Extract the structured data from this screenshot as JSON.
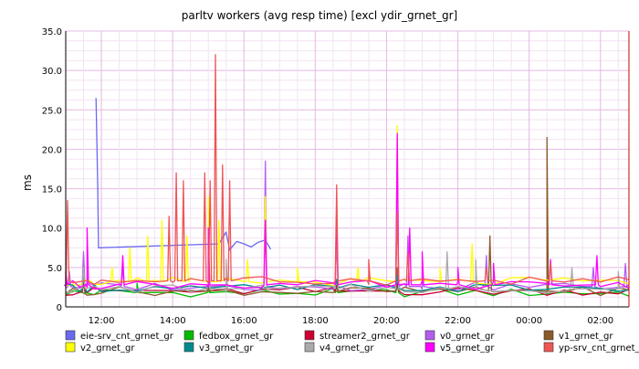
{
  "chart_data": {
    "type": "line",
    "title": "parltv workers (avg resp time) [excl ydir_grnet_gr]",
    "ylabel": "ms",
    "xlabel": "",
    "ylim": [
      0,
      35
    ],
    "xlim": [
      11.0,
      26.8
    ],
    "grid": true,
    "legend_position": "bottom",
    "y_ticks": [
      "0",
      "5.0",
      "10.0",
      "15.0",
      "20.0",
      "25.0",
      "30.0",
      "35.0"
    ],
    "x_ticks": [
      {
        "label": "12:00",
        "x": 12
      },
      {
        "label": "14:00",
        "x": 14
      },
      {
        "label": "16:00",
        "x": 16
      },
      {
        "label": "18:00",
        "x": 18
      },
      {
        "label": "20:00",
        "x": 20
      },
      {
        "label": "22:00",
        "x": 22
      },
      {
        "label": "00:00",
        "x": 24
      },
      {
        "label": "02:00",
        "x": 26
      }
    ],
    "base_x": [
      11.0,
      11.2,
      11.4,
      11.6,
      11.8,
      12.0,
      12.5,
      13.0,
      13.5,
      14.0,
      14.5,
      15.0,
      15.5,
      16.0,
      16.5,
      17.0,
      17.5,
      18.0,
      18.5,
      19.0,
      19.5,
      20.0,
      20.5,
      21.0,
      21.5,
      22.0,
      22.5,
      23.0,
      23.5,
      24.0,
      24.5,
      25.0,
      25.5,
      26.0,
      26.5,
      26.8
    ],
    "series": [
      {
        "name": "eie-srv_cnt_grnet_gr",
        "color": "#6a6af0",
        "baseline": null,
        "x": [
          11.85,
          11.9,
          11.92,
          15.3,
          15.5,
          15.6,
          15.7,
          15.8,
          16.0,
          16.2,
          16.4,
          16.6,
          16.75
        ],
        "y": [
          26.5,
          15.0,
          7.5,
          8.0,
          9.5,
          7.2,
          7.8,
          8.3,
          8.0,
          7.6,
          8.2,
          8.5,
          7.3
        ]
      },
      {
        "name": "fedbox_grnet_gr",
        "color": "#00bb00",
        "baseline": 1.8,
        "spikes": [
          [
            11.5,
            3.0
          ],
          [
            13.0,
            3.0
          ],
          [
            15.0,
            3.5
          ],
          [
            18.6,
            2.6
          ],
          [
            20.3,
            2.8
          ]
        ]
      },
      {
        "name": "streamer2_grnet_gr",
        "color": "#cc0033",
        "baseline": 2.0,
        "spikes": [
          [
            11.5,
            3.5
          ],
          [
            15.0,
            4.0
          ],
          [
            18.6,
            3.0
          ],
          [
            20.3,
            3.0
          ]
        ]
      },
      {
        "name": "v0_grnet_gr",
        "color": "#b45cf0",
        "baseline": 2.6,
        "spikes": [
          [
            11.1,
            4.5
          ],
          [
            11.5,
            7.0
          ],
          [
            12.6,
            5.0
          ],
          [
            15.0,
            8.0
          ],
          [
            16.6,
            18.5
          ],
          [
            18.6,
            9.0
          ],
          [
            20.3,
            17.0
          ],
          [
            20.6,
            9.0
          ],
          [
            21.0,
            5.0
          ],
          [
            22.8,
            6.5
          ],
          [
            25.8,
            5.0
          ],
          [
            26.7,
            5.5
          ]
        ]
      },
      {
        "name": "v1_grnet_gr",
        "color": "#8b5a2b",
        "baseline": 2.0,
        "spikes": [
          [
            15.0,
            10.0
          ],
          [
            20.3,
            5.0
          ],
          [
            22.9,
            9.0
          ],
          [
            24.5,
            21.5
          ]
        ]
      },
      {
        "name": "v2_grnet_gr",
        "color": "#ffff00",
        "baseline": 3.2,
        "spikes": [
          [
            12.3,
            5.0
          ],
          [
            12.8,
            7.5
          ],
          [
            13.3,
            9.0
          ],
          [
            13.7,
            11.0
          ],
          [
            14.4,
            9.0
          ],
          [
            15.0,
            14.0
          ],
          [
            15.3,
            11.0
          ],
          [
            16.1,
            6.0
          ],
          [
            16.6,
            14.0
          ],
          [
            17.5,
            5.0
          ],
          [
            19.2,
            5.0
          ],
          [
            20.3,
            23.0
          ],
          [
            21.5,
            5.0
          ],
          [
            22.4,
            8.0
          ]
        ]
      },
      {
        "name": "v3_grnet_gr",
        "color": "#008b8b",
        "baseline": 2.4,
        "spikes": [
          [
            11.5,
            4.0
          ],
          [
            15.0,
            5.0
          ],
          [
            18.6,
            3.5
          ],
          [
            20.3,
            4.0
          ]
        ]
      },
      {
        "name": "v4_grnet_gr",
        "color": "#aaaaaa",
        "baseline": 2.3,
        "spikes": [
          [
            11.5,
            5.0
          ],
          [
            15.0,
            9.0
          ],
          [
            15.5,
            6.0
          ],
          [
            16.6,
            11.0
          ],
          [
            18.6,
            10.0
          ],
          [
            20.3,
            20.5
          ],
          [
            21.7,
            7.0
          ],
          [
            22.5,
            6.0
          ],
          [
            25.2,
            5.0
          ],
          [
            26.5,
            4.5
          ]
        ]
      },
      {
        "name": "v5_grnet_gr",
        "color": "#ff00ff",
        "baseline": 2.8,
        "spikes": [
          [
            11.0,
            4.5
          ],
          [
            11.6,
            10.0
          ],
          [
            12.6,
            6.5
          ],
          [
            15.0,
            10.0
          ],
          [
            16.6,
            11.0
          ],
          [
            18.6,
            12.0
          ],
          [
            20.3,
            22.0
          ],
          [
            20.65,
            10.0
          ],
          [
            21.0,
            7.0
          ],
          [
            22.0,
            5.0
          ],
          [
            23.0,
            5.5
          ],
          [
            24.6,
            6.0
          ],
          [
            25.9,
            6.5
          ]
        ]
      },
      {
        "name": "yp-srv_cnt_grnet_gr",
        "color": "#ee5555",
        "baseline": 3.3,
        "spikes": [
          [
            11.05,
            13.5
          ],
          [
            13.9,
            11.5
          ],
          [
            14.1,
            17.0
          ],
          [
            14.3,
            16.0
          ],
          [
            14.9,
            17.0
          ],
          [
            15.05,
            16.0
          ],
          [
            15.2,
            32.0
          ],
          [
            15.4,
            18.0
          ],
          [
            15.6,
            16.0
          ],
          [
            18.6,
            15.5
          ],
          [
            19.5,
            6.0
          ],
          [
            20.3,
            12.0
          ],
          [
            20.6,
            7.0
          ],
          [
            22.8,
            5.0
          ],
          [
            24.6,
            5.5
          ]
        ]
      }
    ]
  },
  "legend": {
    "items": [
      {
        "label": "eie-srv_cnt_grnet_gr",
        "color": "#6a6af0"
      },
      {
        "label": "fedbox_grnet_gr",
        "color": "#00bb00"
      },
      {
        "label": "streamer2_grnet_gr",
        "color": "#cc0033"
      },
      {
        "label": "v0_grnet_gr",
        "color": "#b45cf0"
      },
      {
        "label": "v1_grnet_gr",
        "color": "#8b5a2b"
      },
      {
        "label": "v2_grnet_gr",
        "color": "#ffff00"
      },
      {
        "label": "v3_grnet_gr",
        "color": "#008b8b"
      },
      {
        "label": "v4_grnet_gr",
        "color": "#aaaaaa"
      },
      {
        "label": "v5_grnet_gr",
        "color": "#ff00ff"
      },
      {
        "label": "yp-srv_cnt_grnet_",
        "color": "#ee5555"
      }
    ]
  }
}
